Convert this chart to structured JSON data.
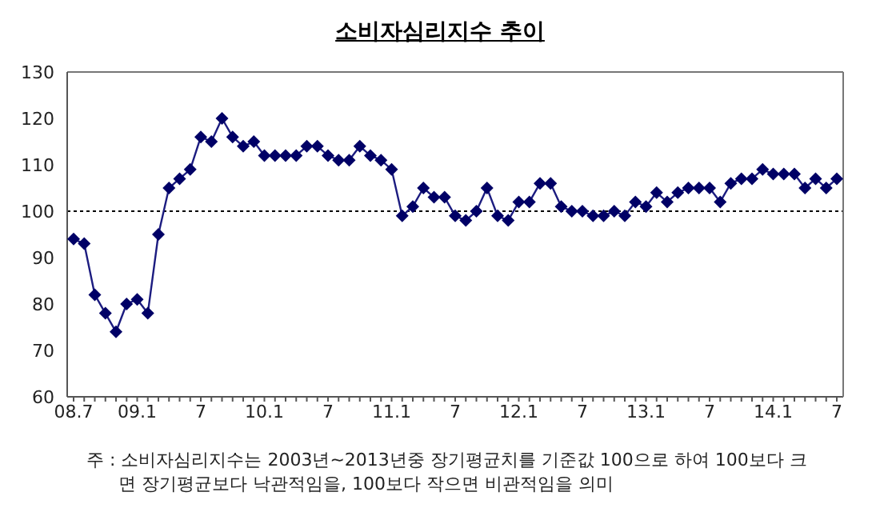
{
  "chart_data": {
    "type": "line",
    "title": "소비자심리지수 추이",
    "categories": [
      "08.7",
      null,
      null,
      null,
      null,
      null,
      "09.1",
      null,
      null,
      null,
      null,
      null,
      "7",
      null,
      null,
      null,
      null,
      null,
      "10.1",
      null,
      null,
      null,
      null,
      null,
      "7",
      null,
      null,
      null,
      null,
      null,
      "11.1",
      null,
      null,
      null,
      null,
      null,
      "7",
      null,
      null,
      null,
      null,
      null,
      "12.1",
      null,
      null,
      null,
      null,
      null,
      "7",
      null,
      null,
      null,
      null,
      null,
      "13.1",
      null,
      null,
      null,
      null,
      null,
      "7",
      null,
      null,
      null,
      null,
      null,
      "14.1",
      null,
      null,
      null,
      null,
      null,
      "7"
    ],
    "series": [
      {
        "color": "#1c1c80",
        "values": [
          94,
          93,
          82,
          78,
          74,
          80,
          81,
          78,
          95,
          105,
          107,
          109,
          116,
          115,
          120,
          116,
          114,
          115,
          112,
          112,
          112,
          112,
          114,
          114,
          112,
          111,
          111,
          114,
          112,
          111,
          109,
          99,
          101,
          105,
          103,
          103,
          99,
          98,
          100,
          105,
          99,
          98,
          102,
          102,
          106,
          106,
          101,
          100,
          100,
          99,
          99,
          100,
          99,
          102,
          101,
          104,
          102,
          104,
          105,
          105,
          105,
          102,
          106,
          107,
          107,
          109,
          108,
          108,
          108,
          105,
          107,
          105,
          107
        ]
      }
    ],
    "ylim": [
      60,
      130
    ],
    "yticks": [
      60,
      70,
      80,
      90,
      100,
      110,
      120,
      130
    ],
    "grid": false,
    "legend": false,
    "marker": "diamond",
    "line_style": "solid",
    "ref_lines": [
      {
        "axis": "y",
        "value": 100,
        "color": "#000000",
        "line_style": "dotted"
      }
    ],
    "annotations": [
      "주 : 소비자심리지수는 2003년~2013년중 장기평균치를 기준값 100으로 하여 100보다 크면 장기평균보다 낙관적임을, 100보다 작으면 비관적임을 의미"
    ]
  }
}
